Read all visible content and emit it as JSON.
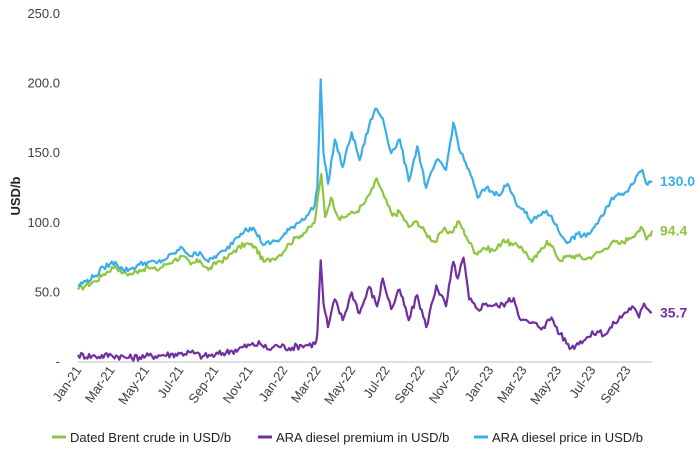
{
  "chart_data": {
    "type": "line",
    "title": "",
    "ylabel": "USD/b",
    "xlabel": "",
    "ylim": [
      0,
      250
    ],
    "y_ticks": [
      {
        "value": 0,
        "label": "-"
      },
      {
        "value": 50,
        "label": "50.0"
      },
      {
        "value": 100,
        "label": "100.0"
      },
      {
        "value": 150,
        "label": "150.0"
      },
      {
        "value": 200,
        "label": "200.0"
      },
      {
        "value": 250,
        "label": "250.0"
      }
    ],
    "x_ticks": [
      "Jan-21",
      "Mar-21",
      "May-21",
      "Jul-21",
      "Sep-21",
      "Nov-21",
      "Jan-22",
      "Mar-22",
      "May-22",
      "Jul-22",
      "Sep-22",
      "Nov-22",
      "Jan-23",
      "Mar-23",
      "May-23",
      "Jul-23",
      "Sep-23"
    ],
    "x_start": "2021-01-01",
    "x_end": "2023-10-15",
    "grid": false,
    "legend_position": "bottom",
    "series": [
      {
        "name": "Dated Brent crude in USD/b",
        "color": "#8DC63F",
        "end_label": "94.4",
        "points": [
          [
            "2021-01-01",
            52
          ],
          [
            "2021-01-15",
            55
          ],
          [
            "2021-02-01",
            58
          ],
          [
            "2021-02-15",
            63
          ],
          [
            "2021-03-08",
            69
          ],
          [
            "2021-03-22",
            64
          ],
          [
            "2021-04-05",
            63
          ],
          [
            "2021-04-20",
            66
          ],
          [
            "2021-05-05",
            68
          ],
          [
            "2021-05-20",
            66
          ],
          [
            "2021-06-05",
            70
          ],
          [
            "2021-06-20",
            73
          ],
          [
            "2021-07-05",
            76
          ],
          [
            "2021-07-20",
            70
          ],
          [
            "2021-08-05",
            73
          ],
          [
            "2021-08-20",
            66
          ],
          [
            "2021-09-05",
            72
          ],
          [
            "2021-09-20",
            74
          ],
          [
            "2021-10-05",
            80
          ],
          [
            "2021-10-25",
            85
          ],
          [
            "2021-11-10",
            83
          ],
          [
            "2021-11-26",
            72
          ],
          [
            "2021-12-10",
            74
          ],
          [
            "2021-12-25",
            77
          ],
          [
            "2022-01-10",
            85
          ],
          [
            "2022-01-25",
            90
          ],
          [
            "2022-02-10",
            94
          ],
          [
            "2022-02-24",
            100
          ],
          [
            "2022-03-08",
            135
          ],
          [
            "2022-03-15",
            104
          ],
          [
            "2022-03-25",
            118
          ],
          [
            "2022-04-10",
            102
          ],
          [
            "2022-04-25",
            106
          ],
          [
            "2022-05-10",
            108
          ],
          [
            "2022-05-25",
            115
          ],
          [
            "2022-06-08",
            125
          ],
          [
            "2022-06-14",
            132
          ],
          [
            "2022-06-28",
            118
          ],
          [
            "2022-07-12",
            105
          ],
          [
            "2022-07-25",
            108
          ],
          [
            "2022-08-10",
            97
          ],
          [
            "2022-08-25",
            101
          ],
          [
            "2022-09-10",
            92
          ],
          [
            "2022-09-26",
            86
          ],
          [
            "2022-10-10",
            95
          ],
          [
            "2022-10-25",
            93
          ],
          [
            "2022-11-07",
            101
          ],
          [
            "2022-11-20",
            90
          ],
          [
            "2022-12-07",
            78
          ],
          [
            "2022-12-20",
            82
          ],
          [
            "2023-01-10",
            80
          ],
          [
            "2023-01-25",
            88
          ],
          [
            "2023-02-10",
            84
          ],
          [
            "2023-02-25",
            83
          ],
          [
            "2023-03-17",
            72
          ],
          [
            "2023-03-30",
            79
          ],
          [
            "2023-04-12",
            87
          ],
          [
            "2023-04-25",
            80
          ],
          [
            "2023-05-04",
            73
          ],
          [
            "2023-05-20",
            76
          ],
          [
            "2023-06-05",
            76
          ],
          [
            "2023-06-20",
            74
          ],
          [
            "2023-07-05",
            77
          ],
          [
            "2023-07-20",
            80
          ],
          [
            "2023-08-05",
            86
          ],
          [
            "2023-08-20",
            85
          ],
          [
            "2023-09-05",
            89
          ],
          [
            "2023-09-20",
            94
          ],
          [
            "2023-09-28",
            96
          ],
          [
            "2023-10-05",
            88
          ],
          [
            "2023-10-15",
            94.4
          ]
        ]
      },
      {
        "name": "ARA diesel premium in USD/b",
        "color": "#7030A0",
        "end_label": "35.7",
        "points": [
          [
            "2021-01-01",
            5
          ],
          [
            "2021-02-01",
            4
          ],
          [
            "2021-03-01",
            5
          ],
          [
            "2021-04-01",
            3
          ],
          [
            "2021-05-01",
            4
          ],
          [
            "2021-06-01",
            5
          ],
          [
            "2021-07-01",
            6
          ],
          [
            "2021-07-20",
            7
          ],
          [
            "2021-08-10",
            4
          ],
          [
            "2021-09-01",
            5
          ],
          [
            "2021-10-01",
            8
          ],
          [
            "2021-11-01",
            12
          ],
          [
            "2021-11-20",
            13
          ],
          [
            "2021-12-05",
            9
          ],
          [
            "2021-12-20",
            12
          ],
          [
            "2022-01-10",
            10
          ],
          [
            "2022-02-01",
            12
          ],
          [
            "2022-02-25",
            13
          ],
          [
            "2022-03-01",
            20
          ],
          [
            "2022-03-07",
            73
          ],
          [
            "2022-03-12",
            42
          ],
          [
            "2022-03-20",
            25
          ],
          [
            "2022-04-01",
            45
          ],
          [
            "2022-04-15",
            30
          ],
          [
            "2022-05-01",
            50
          ],
          [
            "2022-05-15",
            35
          ],
          [
            "2022-06-01",
            54
          ],
          [
            "2022-06-15",
            40
          ],
          [
            "2022-06-25",
            60
          ],
          [
            "2022-07-10",
            38
          ],
          [
            "2022-07-25",
            52
          ],
          [
            "2022-08-10",
            30
          ],
          [
            "2022-08-25",
            48
          ],
          [
            "2022-09-10",
            25
          ],
          [
            "2022-09-28",
            55
          ],
          [
            "2022-10-15",
            40
          ],
          [
            "2022-10-28",
            72
          ],
          [
            "2022-11-05",
            60
          ],
          [
            "2022-11-15",
            75
          ],
          [
            "2022-11-25",
            45
          ],
          [
            "2022-12-10",
            38
          ],
          [
            "2022-12-25",
            42
          ],
          [
            "2023-01-15",
            40
          ],
          [
            "2023-02-01",
            43
          ],
          [
            "2023-02-12",
            46
          ],
          [
            "2023-02-25",
            30
          ],
          [
            "2023-03-15",
            28
          ],
          [
            "2023-04-05",
            25
          ],
          [
            "2023-04-20",
            32
          ],
          [
            "2023-05-05",
            20
          ],
          [
            "2023-05-25",
            10
          ],
          [
            "2023-06-10",
            15
          ],
          [
            "2023-06-25",
            18
          ],
          [
            "2023-07-10",
            22
          ],
          [
            "2023-07-25",
            20
          ],
          [
            "2023-08-10",
            28
          ],
          [
            "2023-08-25",
            34
          ],
          [
            "2023-09-10",
            40
          ],
          [
            "2023-09-22",
            32
          ],
          [
            "2023-10-01",
            42
          ],
          [
            "2023-10-15",
            35.7
          ]
        ]
      },
      {
        "name": "ARA diesel price in USD/b",
        "color": "#3BAEE9",
        "end_label": "130.0",
        "points": [
          [
            "2021-01-01",
            55
          ],
          [
            "2021-01-15",
            58
          ],
          [
            "2021-02-01",
            62
          ],
          [
            "2021-02-15",
            68
          ],
          [
            "2021-03-08",
            72
          ],
          [
            "2021-03-22",
            66
          ],
          [
            "2021-04-05",
            67
          ],
          [
            "2021-04-20",
            70
          ],
          [
            "2021-05-05",
            72
          ],
          [
            "2021-05-20",
            71
          ],
          [
            "2021-06-05",
            74
          ],
          [
            "2021-06-20",
            78
          ],
          [
            "2021-07-05",
            82
          ],
          [
            "2021-07-20",
            76
          ],
          [
            "2021-08-05",
            79
          ],
          [
            "2021-08-20",
            72
          ],
          [
            "2021-09-05",
            77
          ],
          [
            "2021-09-20",
            80
          ],
          [
            "2021-10-05",
            88
          ],
          [
            "2021-10-25",
            96
          ],
          [
            "2021-11-10",
            95
          ],
          [
            "2021-11-26",
            84
          ],
          [
            "2021-12-10",
            86
          ],
          [
            "2021-12-25",
            88
          ],
          [
            "2022-01-10",
            95
          ],
          [
            "2022-01-25",
            100
          ],
          [
            "2022-02-10",
            105
          ],
          [
            "2022-02-24",
            112
          ],
          [
            "2022-03-01",
            125
          ],
          [
            "2022-03-07",
            203
          ],
          [
            "2022-03-12",
            150
          ],
          [
            "2022-03-20",
            128
          ],
          [
            "2022-04-01",
            160
          ],
          [
            "2022-04-15",
            140
          ],
          [
            "2022-05-01",
            165
          ],
          [
            "2022-05-15",
            145
          ],
          [
            "2022-06-01",
            170
          ],
          [
            "2022-06-12",
            182
          ],
          [
            "2022-06-25",
            175
          ],
          [
            "2022-07-10",
            150
          ],
          [
            "2022-07-25",
            160
          ],
          [
            "2022-08-10",
            130
          ],
          [
            "2022-08-25",
            155
          ],
          [
            "2022-09-10",
            125
          ],
          [
            "2022-09-28",
            145
          ],
          [
            "2022-10-15",
            138
          ],
          [
            "2022-10-28",
            172
          ],
          [
            "2022-11-10",
            150
          ],
          [
            "2022-11-25",
            138
          ],
          [
            "2022-12-10",
            118
          ],
          [
            "2022-12-25",
            125
          ],
          [
            "2023-01-15",
            120
          ],
          [
            "2023-02-01",
            128
          ],
          [
            "2023-02-15",
            115
          ],
          [
            "2023-03-01",
            110
          ],
          [
            "2023-03-15",
            100
          ],
          [
            "2023-04-05",
            108
          ],
          [
            "2023-04-20",
            105
          ],
          [
            "2023-05-05",
            92
          ],
          [
            "2023-05-20",
            86
          ],
          [
            "2023-06-05",
            92
          ],
          [
            "2023-06-20",
            90
          ],
          [
            "2023-07-05",
            97
          ],
          [
            "2023-07-20",
            105
          ],
          [
            "2023-08-05",
            118
          ],
          [
            "2023-08-20",
            120
          ],
          [
            "2023-09-05",
            125
          ],
          [
            "2023-09-20",
            135
          ],
          [
            "2023-09-28",
            138
          ],
          [
            "2023-10-05",
            128
          ],
          [
            "2023-10-15",
            130
          ]
        ]
      }
    ]
  }
}
